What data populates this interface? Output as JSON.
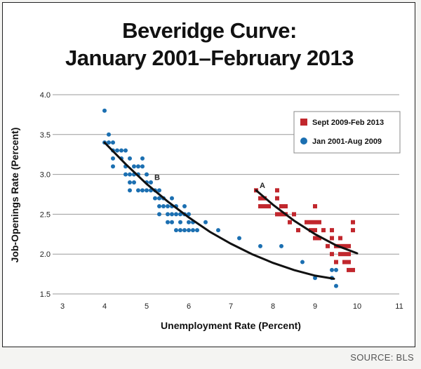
{
  "chart_data": {
    "type": "scatter",
    "title_line1": "Beveridge Curve:",
    "title_line2": "January 2001–February 2013",
    "xlabel": "Unemployment Rate (Percent)",
    "ylabel": "Job-Openings Rate (Percent)",
    "xlim": [
      3,
      11
    ],
    "ylim": [
      1.5,
      4.0
    ],
    "xticks": [
      "3",
      "4",
      "5",
      "6",
      "7",
      "8",
      "9",
      "10",
      "11"
    ],
    "yticks": [
      "1.5",
      "2.0",
      "2.5",
      "3.0",
      "3.5",
      "4.0"
    ],
    "grid": "horizontal",
    "legend_position": "top-right",
    "source": "SOURCE: BLS",
    "annotations": [
      {
        "text": "A",
        "x": 7.75,
        "y": 2.83
      },
      {
        "text": "B",
        "x": 5.25,
        "y": 2.93
      }
    ],
    "series": [
      {
        "name": "Sept 2009-Feb 2013",
        "marker": "square",
        "color": "#c1272d",
        "points": [
          [
            7.6,
            2.8
          ],
          [
            7.7,
            2.7
          ],
          [
            7.7,
            2.6
          ],
          [
            7.8,
            2.6
          ],
          [
            7.8,
            2.7
          ],
          [
            7.9,
            2.6
          ],
          [
            8.1,
            2.8
          ],
          [
            8.1,
            2.7
          ],
          [
            8.2,
            2.6
          ],
          [
            8.1,
            2.5
          ],
          [
            8.2,
            2.5
          ],
          [
            8.3,
            2.6
          ],
          [
            8.3,
            2.5
          ],
          [
            8.4,
            2.4
          ],
          [
            8.5,
            2.5
          ],
          [
            8.6,
            2.3
          ],
          [
            8.8,
            2.4
          ],
          [
            8.9,
            2.3
          ],
          [
            9.0,
            2.4
          ],
          [
            9.0,
            2.6
          ],
          [
            9.1,
            2.4
          ],
          [
            9.0,
            2.2
          ],
          [
            8.9,
            2.4
          ],
          [
            9.0,
            2.3
          ],
          [
            9.1,
            2.2
          ],
          [
            9.2,
            2.3
          ],
          [
            9.4,
            2.3
          ],
          [
            9.4,
            2.2
          ],
          [
            9.3,
            2.1
          ],
          [
            9.4,
            2.0
          ],
          [
            9.5,
            2.1
          ],
          [
            9.6,
            2.1
          ],
          [
            9.6,
            2.2
          ],
          [
            9.5,
            1.9
          ],
          [
            9.7,
            2.0
          ],
          [
            9.8,
            2.0
          ],
          [
            9.8,
            1.9
          ],
          [
            9.7,
            1.9
          ],
          [
            9.8,
            1.8
          ],
          [
            9.9,
            1.8
          ],
          [
            9.8,
            2.1
          ],
          [
            9.9,
            2.3
          ],
          [
            9.9,
            2.4
          ],
          [
            9.6,
            2.0
          ],
          [
            9.7,
            2.1
          ]
        ]
      },
      {
        "name": "Jan 2001-Aug 2009",
        "marker": "circle",
        "color": "#1b6fb1",
        "points": [
          [
            4.0,
            3.8
          ],
          [
            4.1,
            3.5
          ],
          [
            4.0,
            3.4
          ],
          [
            4.1,
            3.4
          ],
          [
            4.2,
            3.4
          ],
          [
            4.2,
            3.3
          ],
          [
            4.2,
            3.2
          ],
          [
            4.3,
            3.3
          ],
          [
            4.4,
            3.3
          ],
          [
            4.2,
            3.1
          ],
          [
            4.4,
            3.2
          ],
          [
            4.5,
            3.3
          ],
          [
            4.5,
            3.1
          ],
          [
            4.6,
            3.2
          ],
          [
            4.6,
            3.0
          ],
          [
            4.5,
            3.0
          ],
          [
            4.7,
            3.1
          ],
          [
            4.7,
            3.0
          ],
          [
            4.8,
            3.0
          ],
          [
            4.8,
            3.1
          ],
          [
            4.9,
            3.2
          ],
          [
            4.9,
            3.1
          ],
          [
            4.6,
            2.9
          ],
          [
            4.6,
            2.8
          ],
          [
            4.7,
            2.9
          ],
          [
            4.8,
            2.8
          ],
          [
            4.9,
            2.8
          ],
          [
            5.0,
            2.8
          ],
          [
            5.0,
            3.0
          ],
          [
            5.1,
            2.9
          ],
          [
            5.1,
            2.8
          ],
          [
            5.0,
            2.9
          ],
          [
            5.2,
            2.8
          ],
          [
            5.2,
            2.7
          ],
          [
            5.3,
            2.7
          ],
          [
            5.3,
            2.8
          ],
          [
            5.3,
            2.6
          ],
          [
            5.4,
            2.7
          ],
          [
            5.4,
            2.6
          ],
          [
            5.5,
            2.6
          ],
          [
            5.5,
            2.5
          ],
          [
            5.6,
            2.7
          ],
          [
            5.6,
            2.6
          ],
          [
            5.6,
            2.5
          ],
          [
            5.7,
            2.6
          ],
          [
            5.7,
            2.5
          ],
          [
            5.8,
            2.4
          ],
          [
            5.8,
            2.5
          ],
          [
            5.9,
            2.5
          ],
          [
            5.9,
            2.6
          ],
          [
            5.3,
            2.5
          ],
          [
            5.5,
            2.4
          ],
          [
            5.6,
            2.4
          ],
          [
            5.7,
            2.3
          ],
          [
            5.8,
            2.3
          ],
          [
            5.9,
            2.3
          ],
          [
            6.0,
            2.3
          ],
          [
            6.0,
            2.4
          ],
          [
            6.1,
            2.3
          ],
          [
            6.0,
            2.5
          ],
          [
            6.1,
            2.4
          ],
          [
            6.2,
            2.3
          ],
          [
            6.4,
            2.4
          ],
          [
            6.7,
            2.3
          ],
          [
            7.2,
            2.2
          ],
          [
            7.7,
            2.1
          ],
          [
            8.2,
            2.1
          ],
          [
            8.7,
            1.9
          ],
          [
            9.0,
            1.7
          ],
          [
            9.4,
            1.8
          ],
          [
            9.5,
            1.8
          ],
          [
            9.5,
            1.6
          ],
          [
            9.4,
            1.7
          ]
        ]
      }
    ],
    "fit_curves": [
      {
        "segment": "Jan 2001-Aug 2009",
        "points": [
          [
            4.0,
            3.4
          ],
          [
            4.5,
            3.13
          ],
          [
            5.0,
            2.88
          ],
          [
            5.5,
            2.66
          ],
          [
            6.0,
            2.46
          ],
          [
            6.5,
            2.28
          ],
          [
            7.0,
            2.13
          ],
          [
            7.5,
            2.0
          ],
          [
            8.0,
            1.89
          ],
          [
            8.5,
            1.8
          ],
          [
            9.0,
            1.73
          ],
          [
            9.45,
            1.69
          ]
        ]
      },
      {
        "segment": "Sept 2009-Feb 2013",
        "points": [
          [
            7.6,
            2.8
          ],
          [
            8.0,
            2.62
          ],
          [
            8.5,
            2.42
          ],
          [
            9.0,
            2.25
          ],
          [
            9.5,
            2.11
          ],
          [
            10.0,
            2.01
          ]
        ]
      }
    ]
  }
}
